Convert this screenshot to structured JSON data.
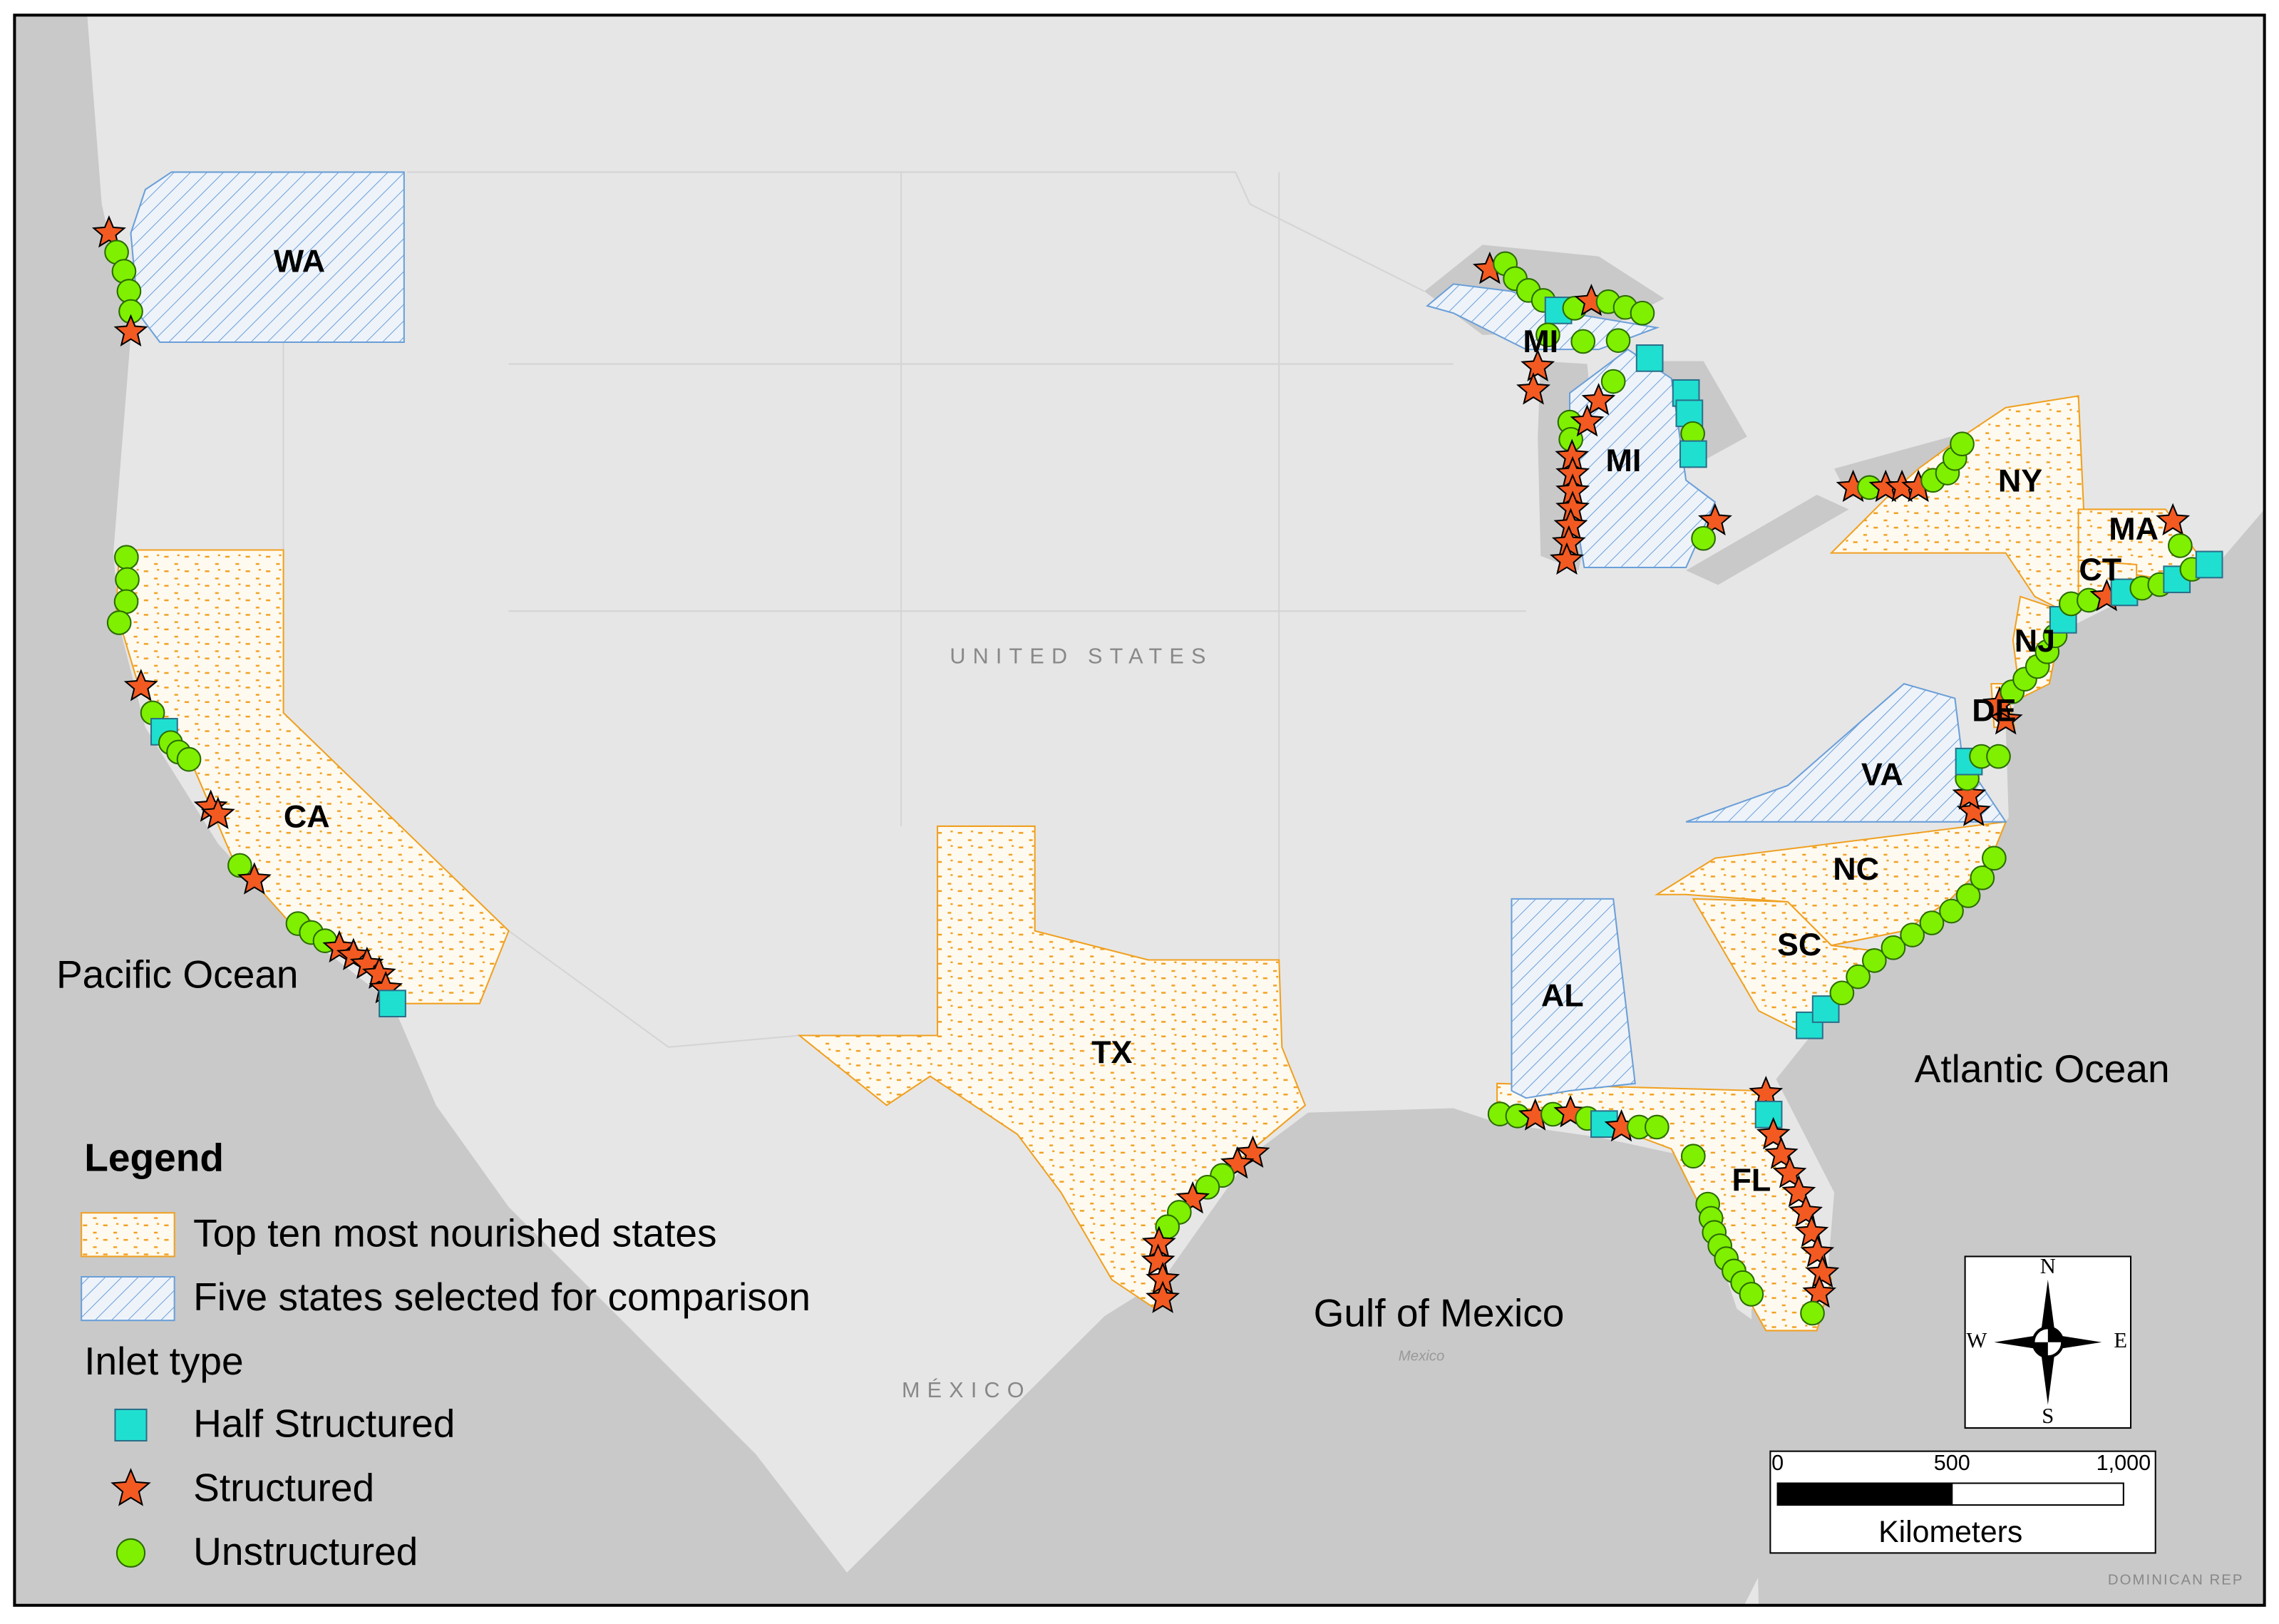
{
  "map": {
    "state_labels": [
      "WA",
      "MI",
      "MI",
      "NY",
      "MA",
      "CT",
      "NJ",
      "DE",
      "VA",
      "NC",
      "SC",
      "CA",
      "TX",
      "AL",
      "FL"
    ],
    "water_labels": [
      "Pacific Ocean",
      "Atlantic Ocean",
      "Gulf of Mexico"
    ],
    "country_labels": [
      "UNITED STATES",
      "MÉXICO",
      "DOMINICAN REP"
    ],
    "basemap_labels": [
      "Mexico"
    ]
  },
  "legend": {
    "title": "Legend",
    "areas": [
      "Top ten most nourished states",
      "Five states selected for comparison"
    ],
    "inlet_title": "Inlet type",
    "inlet_types": [
      "Half Structured",
      "Structured",
      "Unstructured"
    ]
  },
  "compass": {
    "n": "N",
    "s": "S",
    "e": "E",
    "w": "W"
  },
  "scale_bar": {
    "ticks": [
      "0",
      "500",
      "1,000"
    ],
    "unit": "Kilometers"
  }
}
